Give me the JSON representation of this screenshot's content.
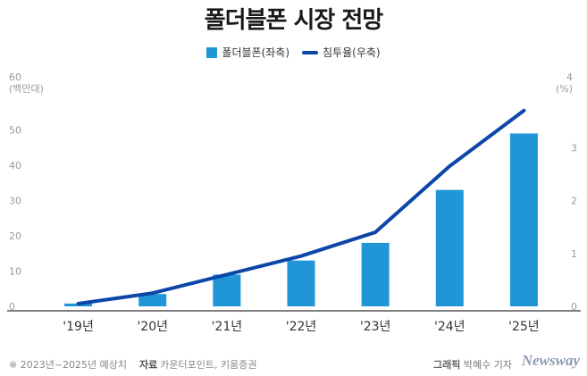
{
  "chart_data": {
    "type": "bar",
    "title": "폴더블폰 시장 전망",
    "categories": [
      "'19년",
      "'20년",
      "'21년",
      "'22년",
      "'23년",
      "'24년",
      "'25년"
    ],
    "series": [
      {
        "name": "폴더블폰(좌축)",
        "type": "bar",
        "axis": "left",
        "color": "#2196d6",
        "values": [
          0.8,
          3.5,
          9,
          13,
          18,
          33,
          49
        ]
      },
      {
        "name": "침투율(우축)",
        "type": "line",
        "axis": "right",
        "color": "#0b46a8",
        "values": [
          0.05,
          0.25,
          0.6,
          0.95,
          1.4,
          2.65,
          3.7
        ]
      }
    ],
    "left_axis": {
      "unit": "(백만대)",
      "ylim": [
        0,
        60
      ],
      "ticks": [
        "0",
        "10",
        "20",
        "30",
        "40",
        "50",
        "60"
      ]
    },
    "right_axis": {
      "unit": "(%)",
      "ylim": [
        0,
        4
      ],
      "ticks": [
        "0",
        "1",
        "2",
        "3",
        "4"
      ]
    },
    "legend_position": "top-center",
    "grid": false
  },
  "footer": {
    "note": "※ 2023년~2025년 예상치",
    "source_label": "자료",
    "source": "카운터포인트, 키움증권",
    "credit_label": "그래픽",
    "credit": "박혜수 기자",
    "brand": "Newsway"
  }
}
